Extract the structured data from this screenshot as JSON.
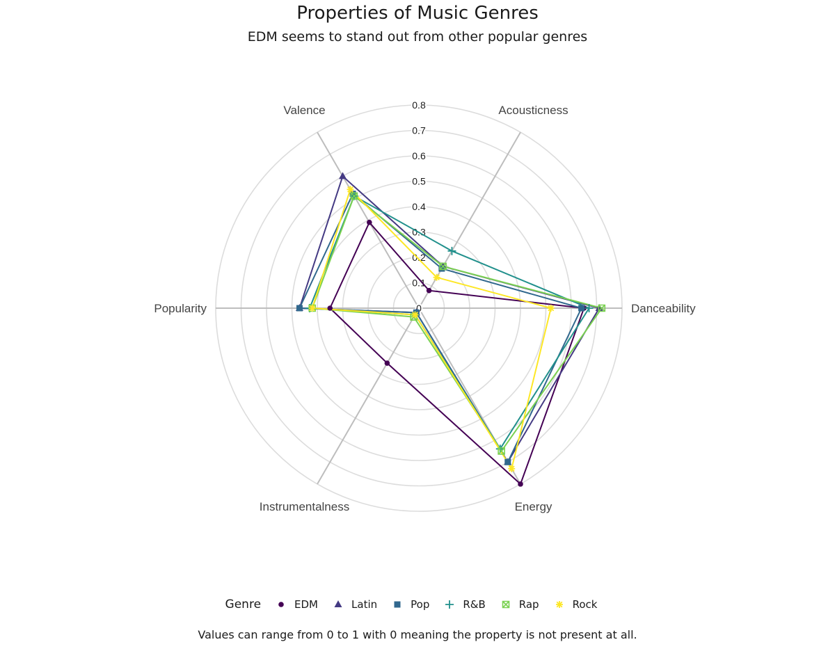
{
  "chart_data": {
    "type": "radar",
    "title": "Properties of Music Genres",
    "subtitle": "EDM seems to stand out from other popular genres",
    "caption": "Values can range from 0 to 1 with 0 meaning the property is not present at all.",
    "axes": [
      "Danceability",
      "Acousticness",
      "Valence",
      "Popularity",
      "Instrumentalness",
      "Energy"
    ],
    "radial_ticks": [
      "0",
      "0.1",
      "0.2",
      "0.3",
      "0.4",
      "0.5",
      "0.6",
      "0.7",
      "0.8"
    ],
    "rlim": [
      0,
      0.8
    ],
    "grid": true,
    "legend_title": "Genre",
    "legend_position": "bottom",
    "series": [
      {
        "name": "EDM",
        "color": "#440154",
        "marker": "circle",
        "values": [
          0.65,
          0.08,
          0.39,
          0.35,
          0.25,
          0.8
        ]
      },
      {
        "name": "Latin",
        "color": "#443A83",
        "marker": "triangle",
        "values": [
          0.71,
          0.19,
          0.6,
          0.47,
          0.02,
          0.7
        ]
      },
      {
        "name": "Pop",
        "color": "#31688E",
        "marker": "square",
        "values": [
          0.64,
          0.18,
          0.52,
          0.47,
          0.02,
          0.7
        ]
      },
      {
        "name": "R&B",
        "color": "#21908C",
        "marker": "plus",
        "values": [
          0.67,
          0.26,
          0.51,
          0.43,
          0.03,
          0.64
        ]
      },
      {
        "name": "Rap",
        "color": "#7AD151",
        "marker": "boxx",
        "values": [
          0.72,
          0.19,
          0.51,
          0.42,
          0.04,
          0.65
        ]
      },
      {
        "name": "Rock",
        "color": "#FDE725",
        "marker": "star",
        "values": [
          0.52,
          0.14,
          0.54,
          0.42,
          0.03,
          0.73
        ]
      }
    ]
  }
}
